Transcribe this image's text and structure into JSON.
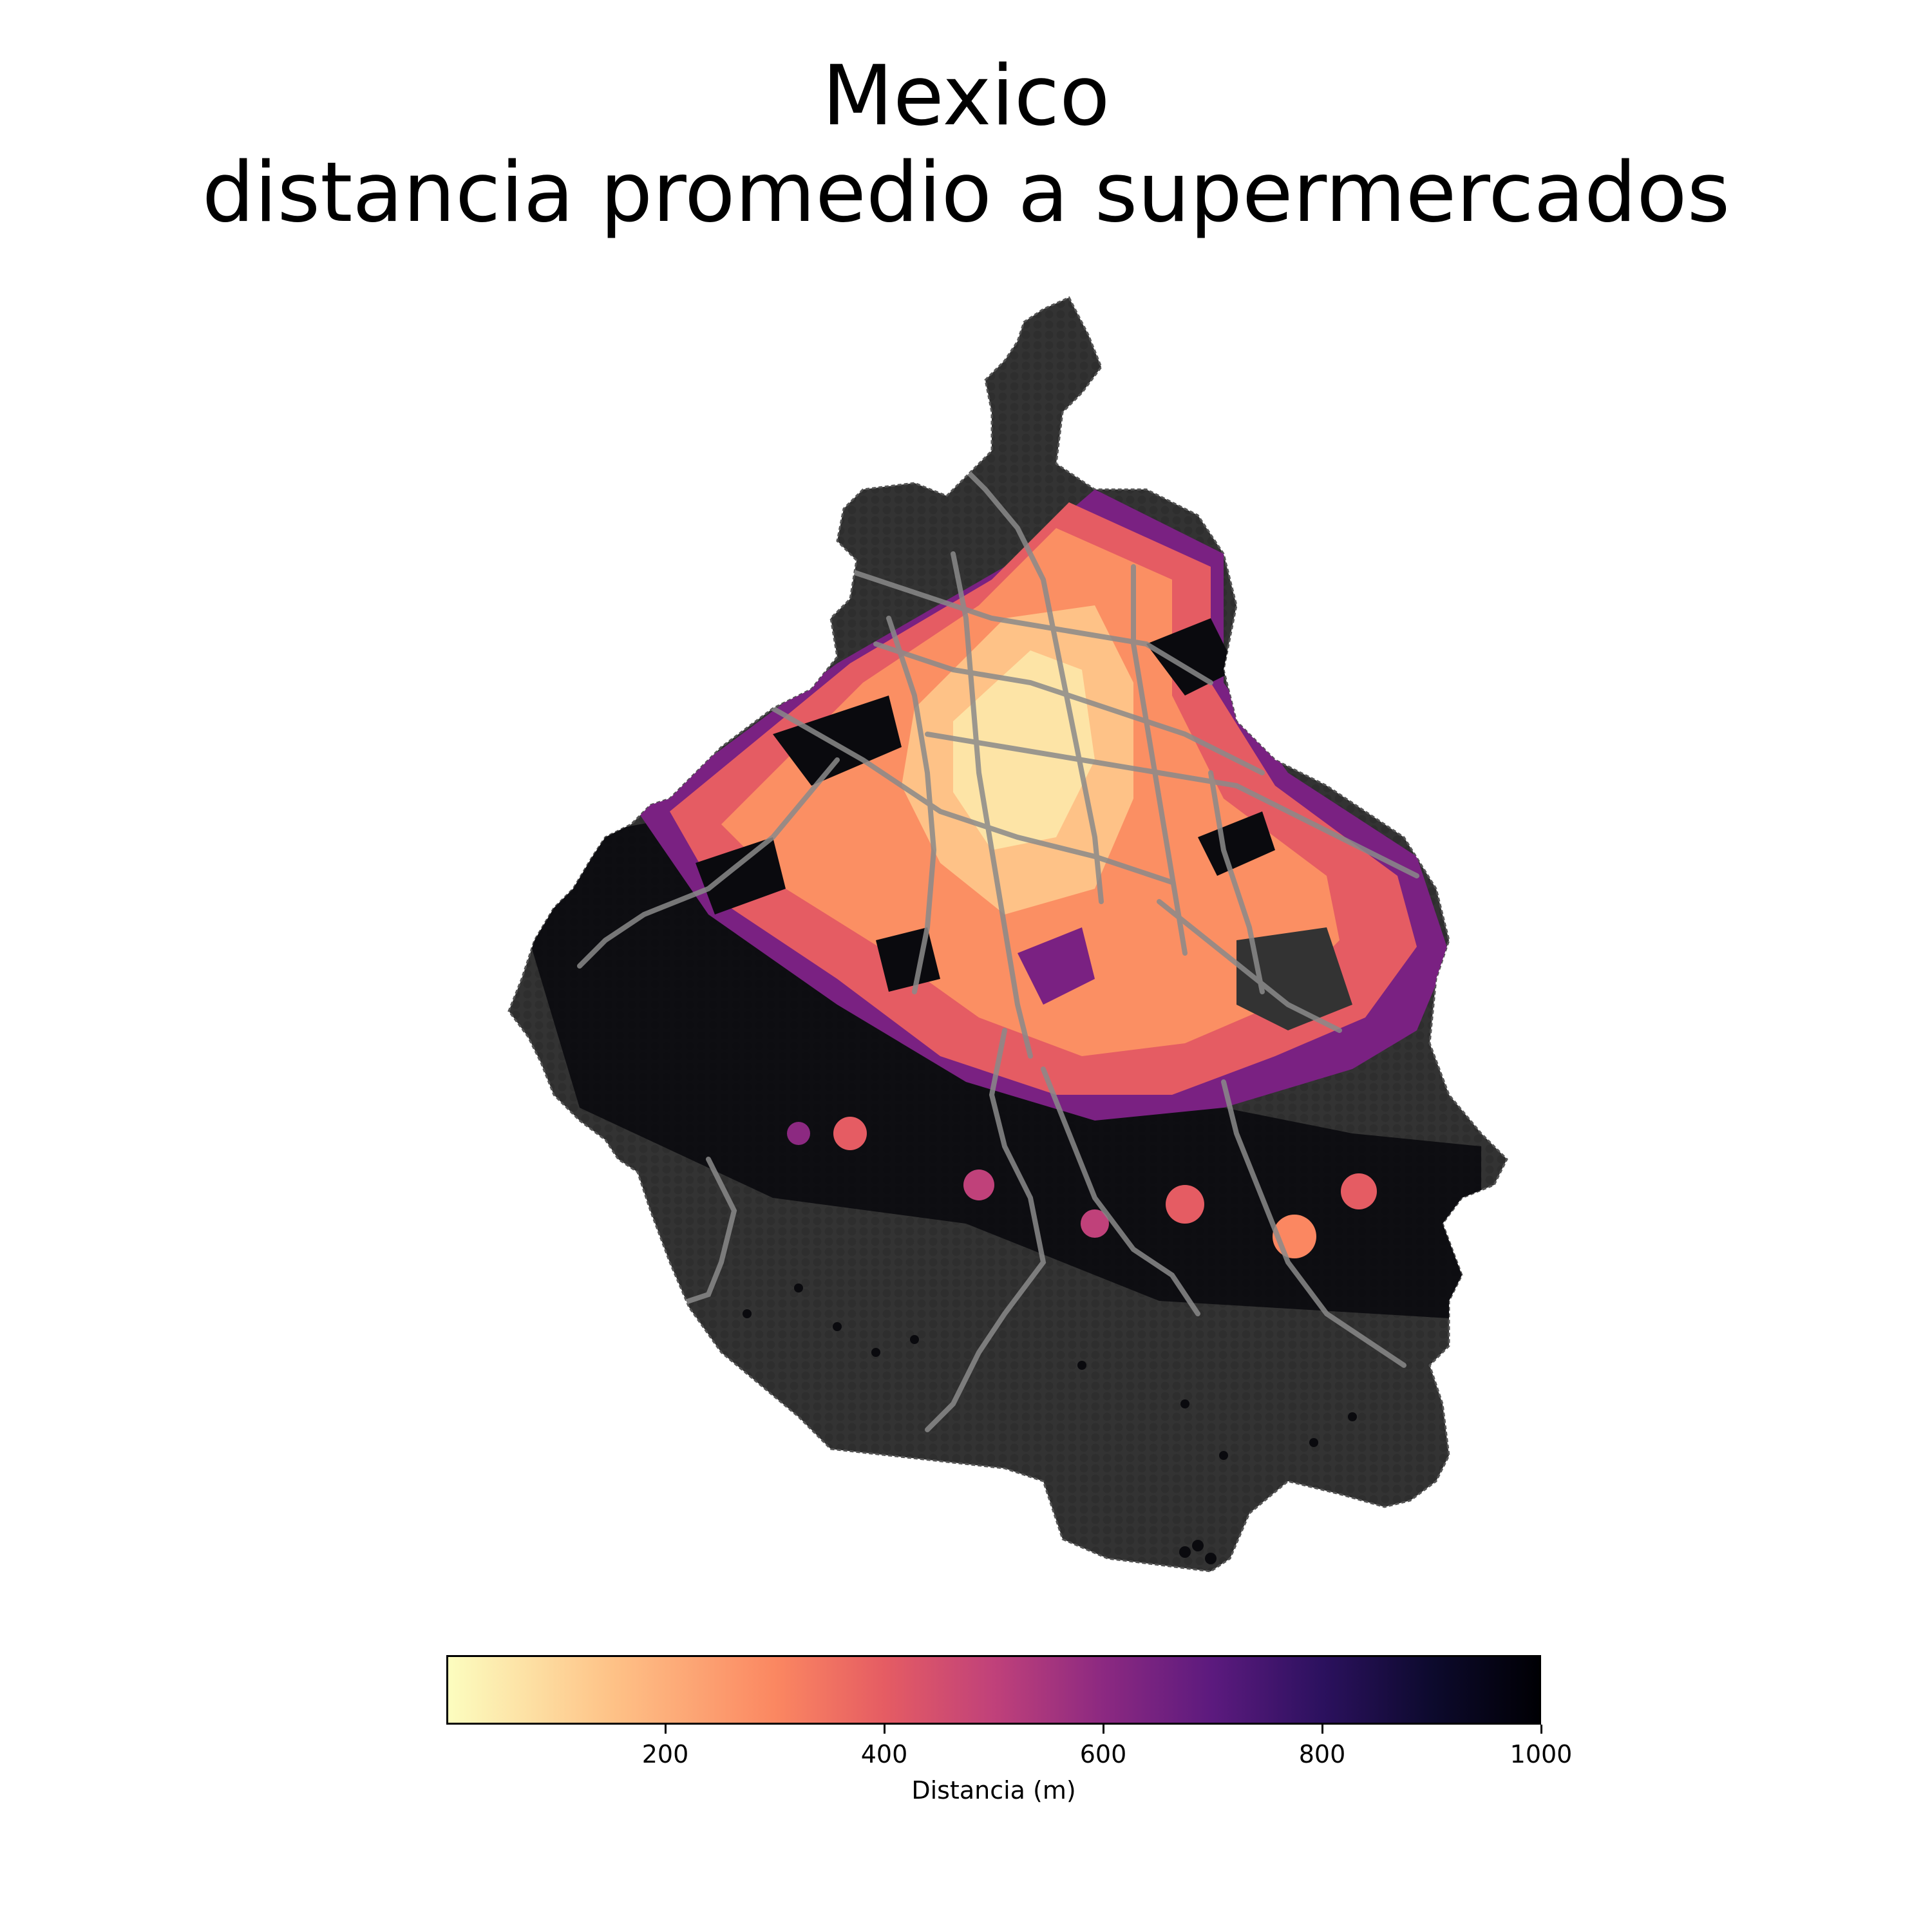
{
  "title": {
    "line1": "Mexico",
    "line2": "distancia promedio a supermercados"
  },
  "map": {
    "region_fill": "#333333",
    "road_color": "#8a8a8a",
    "layers": [
      "hexagon-grid",
      "main-roads"
    ]
  },
  "colorbar": {
    "colormap": "magma_r",
    "min": 0,
    "max": 1000,
    "ticks": [
      {
        "value": 200,
        "label": "200"
      },
      {
        "value": 400,
        "label": "400"
      },
      {
        "value": 600,
        "label": "600"
      },
      {
        "value": 800,
        "label": "800"
      },
      {
        "value": 1000,
        "label": "1000"
      }
    ],
    "label": "Distancia (m)"
  }
}
